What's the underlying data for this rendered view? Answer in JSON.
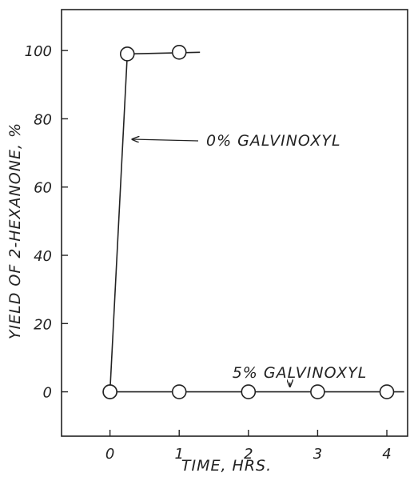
{
  "chart_data": {
    "type": "line",
    "xlabel": "TIME, HRS.",
    "ylabel": "YIELD OF 2-HEXANONE, %",
    "xlim": [
      -0.7,
      4.3
    ],
    "ylim": [
      -13,
      112
    ],
    "xticks": [
      0,
      1,
      2,
      3,
      4
    ],
    "xtick_labels": [
      "0",
      "1",
      "2",
      "3",
      "4"
    ],
    "yticks": [
      0,
      20,
      40,
      60,
      80,
      100
    ],
    "ytick_labels": [
      "0",
      "20",
      "40",
      "60",
      "80",
      "100"
    ],
    "grid": false,
    "series": [
      {
        "name": "0% GALVINOXYL",
        "line": [
          [
            0,
            0
          ],
          [
            0.25,
            99
          ],
          [
            1.3,
            99.5
          ]
        ],
        "markers": [
          [
            0,
            0
          ],
          [
            0.25,
            99
          ],
          [
            1.0,
            99.5
          ]
        ]
      },
      {
        "name": "5% GALVINOXYL",
        "line": [
          [
            0,
            0
          ],
          [
            4.25,
            0
          ]
        ],
        "markers": [
          [
            0,
            0
          ],
          [
            1,
            0
          ],
          [
            2,
            0
          ],
          [
            3,
            0
          ],
          [
            4,
            0
          ]
        ]
      }
    ],
    "annotations": [
      {
        "text": "0% GALVINOXYL",
        "series": 0,
        "arrow_to": [
          0.32,
          74
        ]
      },
      {
        "text": "5% GALVINOXYL",
        "series": 1,
        "arrow_to": [
          2.6,
          1.5
        ]
      }
    ]
  }
}
